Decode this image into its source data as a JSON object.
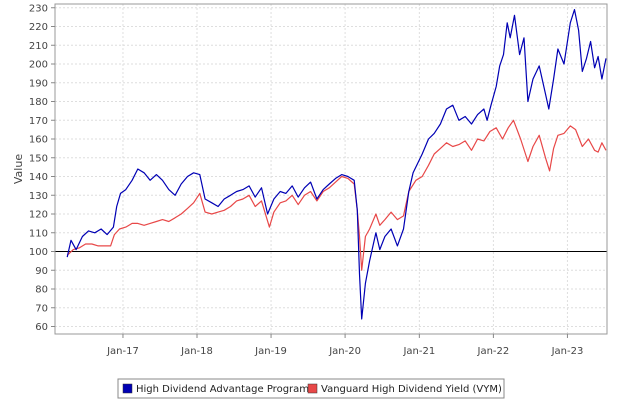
{
  "chart_data": {
    "type": "line",
    "title": "",
    "xlabel": "",
    "ylabel": "Value",
    "ylim": [
      56,
      232
    ],
    "y_ticks": [
      60,
      70,
      80,
      90,
      100,
      110,
      120,
      130,
      140,
      150,
      160,
      170,
      180,
      190,
      200,
      210,
      220,
      230
    ],
    "x_ticks": [
      {
        "label": "Jan-17",
        "date": "2017-01-01"
      },
      {
        "label": "Jan-18",
        "date": "2018-01-01"
      },
      {
        "label": "Jan-19",
        "date": "2019-01-01"
      },
      {
        "label": "Jan-20",
        "date": "2020-01-01"
      },
      {
        "label": "Jan-21",
        "date": "2021-01-01"
      },
      {
        "label": "Jan-22",
        "date": "2022-01-01"
      },
      {
        "label": "Jan-23",
        "date": "2023-01-01"
      }
    ],
    "xlim": [
      "2016-02-01",
      "2023-07-15"
    ],
    "reference_line": 100,
    "grid": true,
    "legend_position": "bottom",
    "series": [
      {
        "name": "High Dividend Advantage Program",
        "color": "#0000b4",
        "points": [
          [
            "2016-04-01",
            97
          ],
          [
            "2016-04-20",
            106
          ],
          [
            "2016-05-15",
            101
          ],
          [
            "2016-06-15",
            108
          ],
          [
            "2016-07-15",
            111
          ],
          [
            "2016-08-15",
            110
          ],
          [
            "2016-09-15",
            112
          ],
          [
            "2016-10-15",
            109
          ],
          [
            "2016-11-15",
            113
          ],
          [
            "2016-12-01",
            124
          ],
          [
            "2016-12-20",
            131
          ],
          [
            "2017-01-15",
            133
          ],
          [
            "2017-02-15",
            138
          ],
          [
            "2017-03-15",
            144
          ],
          [
            "2017-04-15",
            142
          ],
          [
            "2017-05-15",
            138
          ],
          [
            "2017-06-15",
            141
          ],
          [
            "2017-07-15",
            138
          ],
          [
            "2017-08-15",
            133
          ],
          [
            "2017-09-15",
            130
          ],
          [
            "2017-10-15",
            136
          ],
          [
            "2017-11-15",
            140
          ],
          [
            "2017-12-15",
            142
          ],
          [
            "2018-01-15",
            141
          ],
          [
            "2018-02-10",
            128
          ],
          [
            "2018-03-15",
            126
          ],
          [
            "2018-04-15",
            124
          ],
          [
            "2018-05-15",
            128
          ],
          [
            "2018-06-15",
            130
          ],
          [
            "2018-07-15",
            132
          ],
          [
            "2018-08-15",
            133
          ],
          [
            "2018-09-15",
            135
          ],
          [
            "2018-10-15",
            129
          ],
          [
            "2018-11-15",
            134
          ],
          [
            "2018-12-15",
            120
          ],
          [
            "2019-01-15",
            128
          ],
          [
            "2019-02-15",
            132
          ],
          [
            "2019-03-15",
            131
          ],
          [
            "2019-04-15",
            135
          ],
          [
            "2019-05-15",
            129
          ],
          [
            "2019-06-15",
            134
          ],
          [
            "2019-07-15",
            137
          ],
          [
            "2019-08-15",
            128
          ],
          [
            "2019-09-15",
            133
          ],
          [
            "2019-10-15",
            136
          ],
          [
            "2019-11-15",
            139
          ],
          [
            "2019-12-15",
            141
          ],
          [
            "2020-01-15",
            140
          ],
          [
            "2020-02-15",
            138
          ],
          [
            "2020-03-01",
            122
          ],
          [
            "2020-03-12",
            88
          ],
          [
            "2020-03-23",
            64
          ],
          [
            "2020-04-10",
            83
          ],
          [
            "2020-05-01",
            95
          ],
          [
            "2020-06-01",
            110
          ],
          [
            "2020-06-20",
            101
          ],
          [
            "2020-07-15",
            108
          ],
          [
            "2020-08-15",
            112
          ],
          [
            "2020-09-15",
            103
          ],
          [
            "2020-10-15",
            112
          ],
          [
            "2020-11-10",
            132
          ],
          [
            "2020-12-01",
            142
          ],
          [
            "2021-01-15",
            152
          ],
          [
            "2021-02-15",
            160
          ],
          [
            "2021-03-15",
            163
          ],
          [
            "2021-04-15",
            168
          ],
          [
            "2021-05-15",
            176
          ],
          [
            "2021-06-15",
            178
          ],
          [
            "2021-07-15",
            170
          ],
          [
            "2021-08-15",
            172
          ],
          [
            "2021-09-15",
            168
          ],
          [
            "2021-10-15",
            173
          ],
          [
            "2021-11-15",
            176
          ],
          [
            "2021-12-01",
            170
          ],
          [
            "2021-12-20",
            178
          ],
          [
            "2022-01-15",
            188
          ],
          [
            "2022-02-01",
            199
          ],
          [
            "2022-02-20",
            205
          ],
          [
            "2022-03-10",
            222
          ],
          [
            "2022-03-25",
            214
          ],
          [
            "2022-04-15",
            226
          ],
          [
            "2022-05-10",
            205
          ],
          [
            "2022-06-01",
            214
          ],
          [
            "2022-06-20",
            180
          ],
          [
            "2022-07-15",
            192
          ],
          [
            "2022-08-15",
            199
          ],
          [
            "2022-09-15",
            184
          ],
          [
            "2022-10-01",
            176
          ],
          [
            "2022-10-25",
            192
          ],
          [
            "2022-11-15",
            208
          ],
          [
            "2022-12-15",
            200
          ],
          [
            "2023-01-15",
            222
          ],
          [
            "2023-02-05",
            229
          ],
          [
            "2023-02-25",
            218
          ],
          [
            "2023-03-15",
            196
          ],
          [
            "2023-04-05",
            203
          ],
          [
            "2023-04-25",
            212
          ],
          [
            "2023-05-15",
            198
          ],
          [
            "2023-06-01",
            204
          ],
          [
            "2023-06-20",
            192
          ],
          [
            "2023-07-10",
            203
          ]
        ]
      },
      {
        "name": "Vanguard High Dividend Yield (VYM)",
        "color": "#e84848",
        "points": [
          [
            "2016-04-01",
            98
          ],
          [
            "2016-05-01",
            101
          ],
          [
            "2016-06-01",
            102
          ],
          [
            "2016-07-01",
            104
          ],
          [
            "2016-08-01",
            104
          ],
          [
            "2016-09-01",
            103
          ],
          [
            "2016-10-01",
            103
          ],
          [
            "2016-11-01",
            103
          ],
          [
            "2016-11-20",
            109
          ],
          [
            "2016-12-15",
            112
          ],
          [
            "2017-01-15",
            113
          ],
          [
            "2017-02-15",
            115
          ],
          [
            "2017-03-15",
            115
          ],
          [
            "2017-04-15",
            114
          ],
          [
            "2017-05-15",
            115
          ],
          [
            "2017-06-15",
            116
          ],
          [
            "2017-07-15",
            117
          ],
          [
            "2017-08-15",
            116
          ],
          [
            "2017-09-15",
            118
          ],
          [
            "2017-10-15",
            120
          ],
          [
            "2017-11-15",
            123
          ],
          [
            "2017-12-15",
            126
          ],
          [
            "2018-01-15",
            131
          ],
          [
            "2018-02-10",
            121
          ],
          [
            "2018-03-15",
            120
          ],
          [
            "2018-04-15",
            121
          ],
          [
            "2018-05-15",
            122
          ],
          [
            "2018-06-15",
            124
          ],
          [
            "2018-07-15",
            127
          ],
          [
            "2018-08-15",
            128
          ],
          [
            "2018-09-15",
            130
          ],
          [
            "2018-10-15",
            124
          ],
          [
            "2018-11-15",
            127
          ],
          [
            "2018-12-24",
            113
          ],
          [
            "2019-01-15",
            121
          ],
          [
            "2019-02-15",
            126
          ],
          [
            "2019-03-15",
            127
          ],
          [
            "2019-04-15",
            130
          ],
          [
            "2019-05-15",
            125
          ],
          [
            "2019-06-15",
            130
          ],
          [
            "2019-07-15",
            132
          ],
          [
            "2019-08-15",
            127
          ],
          [
            "2019-09-15",
            132
          ],
          [
            "2019-10-15",
            134
          ],
          [
            "2019-11-15",
            137
          ],
          [
            "2019-12-15",
            140
          ],
          [
            "2020-01-15",
            139
          ],
          [
            "2020-02-15",
            136
          ],
          [
            "2020-03-01",
            122
          ],
          [
            "2020-03-12",
            108
          ],
          [
            "2020-03-23",
            90
          ],
          [
            "2020-04-10",
            108
          ],
          [
            "2020-05-01",
            112
          ],
          [
            "2020-06-01",
            120
          ],
          [
            "2020-06-20",
            114
          ],
          [
            "2020-07-15",
            117
          ],
          [
            "2020-08-15",
            121
          ],
          [
            "2020-09-15",
            117
          ],
          [
            "2020-10-15",
            119
          ],
          [
            "2020-11-10",
            132
          ],
          [
            "2020-12-15",
            138
          ],
          [
            "2021-01-15",
            140
          ],
          [
            "2021-02-15",
            146
          ],
          [
            "2021-03-15",
            152
          ],
          [
            "2021-04-15",
            155
          ],
          [
            "2021-05-15",
            158
          ],
          [
            "2021-06-15",
            156
          ],
          [
            "2021-07-15",
            157
          ],
          [
            "2021-08-15",
            159
          ],
          [
            "2021-09-15",
            154
          ],
          [
            "2021-10-15",
            160
          ],
          [
            "2021-11-15",
            159
          ],
          [
            "2021-12-15",
            164
          ],
          [
            "2022-01-15",
            166
          ],
          [
            "2022-02-15",
            160
          ],
          [
            "2022-03-15",
            166
          ],
          [
            "2022-04-10",
            170
          ],
          [
            "2022-05-15",
            160
          ],
          [
            "2022-06-20",
            148
          ],
          [
            "2022-07-15",
            156
          ],
          [
            "2022-08-15",
            162
          ],
          [
            "2022-09-15",
            150
          ],
          [
            "2022-10-05",
            143
          ],
          [
            "2022-10-25",
            155
          ],
          [
            "2022-11-15",
            162
          ],
          [
            "2022-12-15",
            163
          ],
          [
            "2023-01-15",
            167
          ],
          [
            "2023-02-10",
            165
          ],
          [
            "2023-03-15",
            156
          ],
          [
            "2023-04-15",
            160
          ],
          [
            "2023-05-15",
            154
          ],
          [
            "2023-06-01",
            153
          ],
          [
            "2023-06-20",
            158
          ],
          [
            "2023-07-10",
            154
          ]
        ]
      }
    ]
  }
}
